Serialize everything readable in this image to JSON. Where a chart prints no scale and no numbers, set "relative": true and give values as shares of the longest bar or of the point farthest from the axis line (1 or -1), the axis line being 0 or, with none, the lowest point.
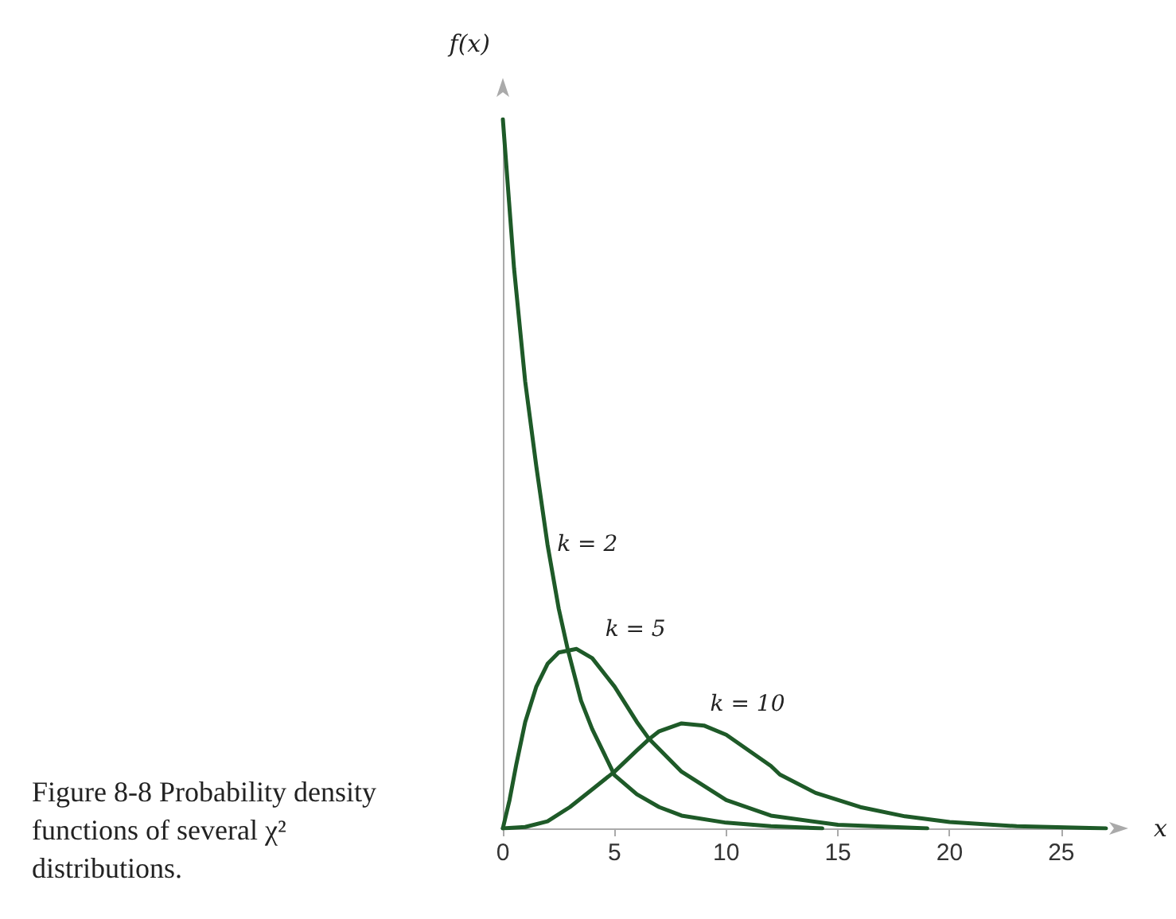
{
  "chart_data": {
    "type": "line",
    "relative": true,
    "xlabel": "x",
    "ylabel": "f(x)",
    "xlim": [
      0,
      27
    ],
    "xticks": [
      0,
      5,
      10,
      15,
      20,
      25
    ],
    "grid": false,
    "legend": false,
    "marker": "none",
    "line_style": "solid",
    "annotations": [
      "Figure 8-8 Probability density functions of several χ² distributions."
    ],
    "series": [
      {
        "name": "k = 2",
        "color": "#1e5a28",
        "x": [
          0,
          0.5,
          1,
          1.5,
          2,
          2.5,
          2.9,
          3.5,
          4,
          5,
          6,
          7,
          8,
          10,
          12,
          14.3
        ],
        "values": [
          1.0,
          0.79,
          0.63,
          0.51,
          0.4,
          0.31,
          0.253,
          0.18,
          0.14,
          0.075,
          0.048,
          0.03,
          0.018,
          0.008,
          0.003,
          0
        ]
      },
      {
        "name": "k = 5",
        "color": "#1e5a28",
        "x": [
          0,
          0.3,
          0.6,
          1,
          1.5,
          2,
          2.5,
          3.3,
          4,
          5,
          6,
          6.55,
          8,
          10,
          12,
          15,
          19
        ],
        "values": [
          0,
          0.04,
          0.09,
          0.15,
          0.2,
          0.232,
          0.248,
          0.253,
          0.24,
          0.2,
          0.15,
          0.126,
          0.08,
          0.04,
          0.018,
          0.005,
          0
        ]
      },
      {
        "name": "k = 10",
        "color": "#1e5a28",
        "x": [
          0,
          1,
          2,
          3,
          4,
          5,
          6,
          6.55,
          7,
          8,
          9,
          10,
          12,
          12.4,
          14,
          16,
          18,
          20,
          23,
          27
        ],
        "values": [
          0,
          0.002,
          0.01,
          0.03,
          0.055,
          0.08,
          0.11,
          0.126,
          0.137,
          0.148,
          0.145,
          0.132,
          0.088,
          0.076,
          0.05,
          0.03,
          0.017,
          0.009,
          0.003,
          0
        ]
      }
    ]
  }
}
